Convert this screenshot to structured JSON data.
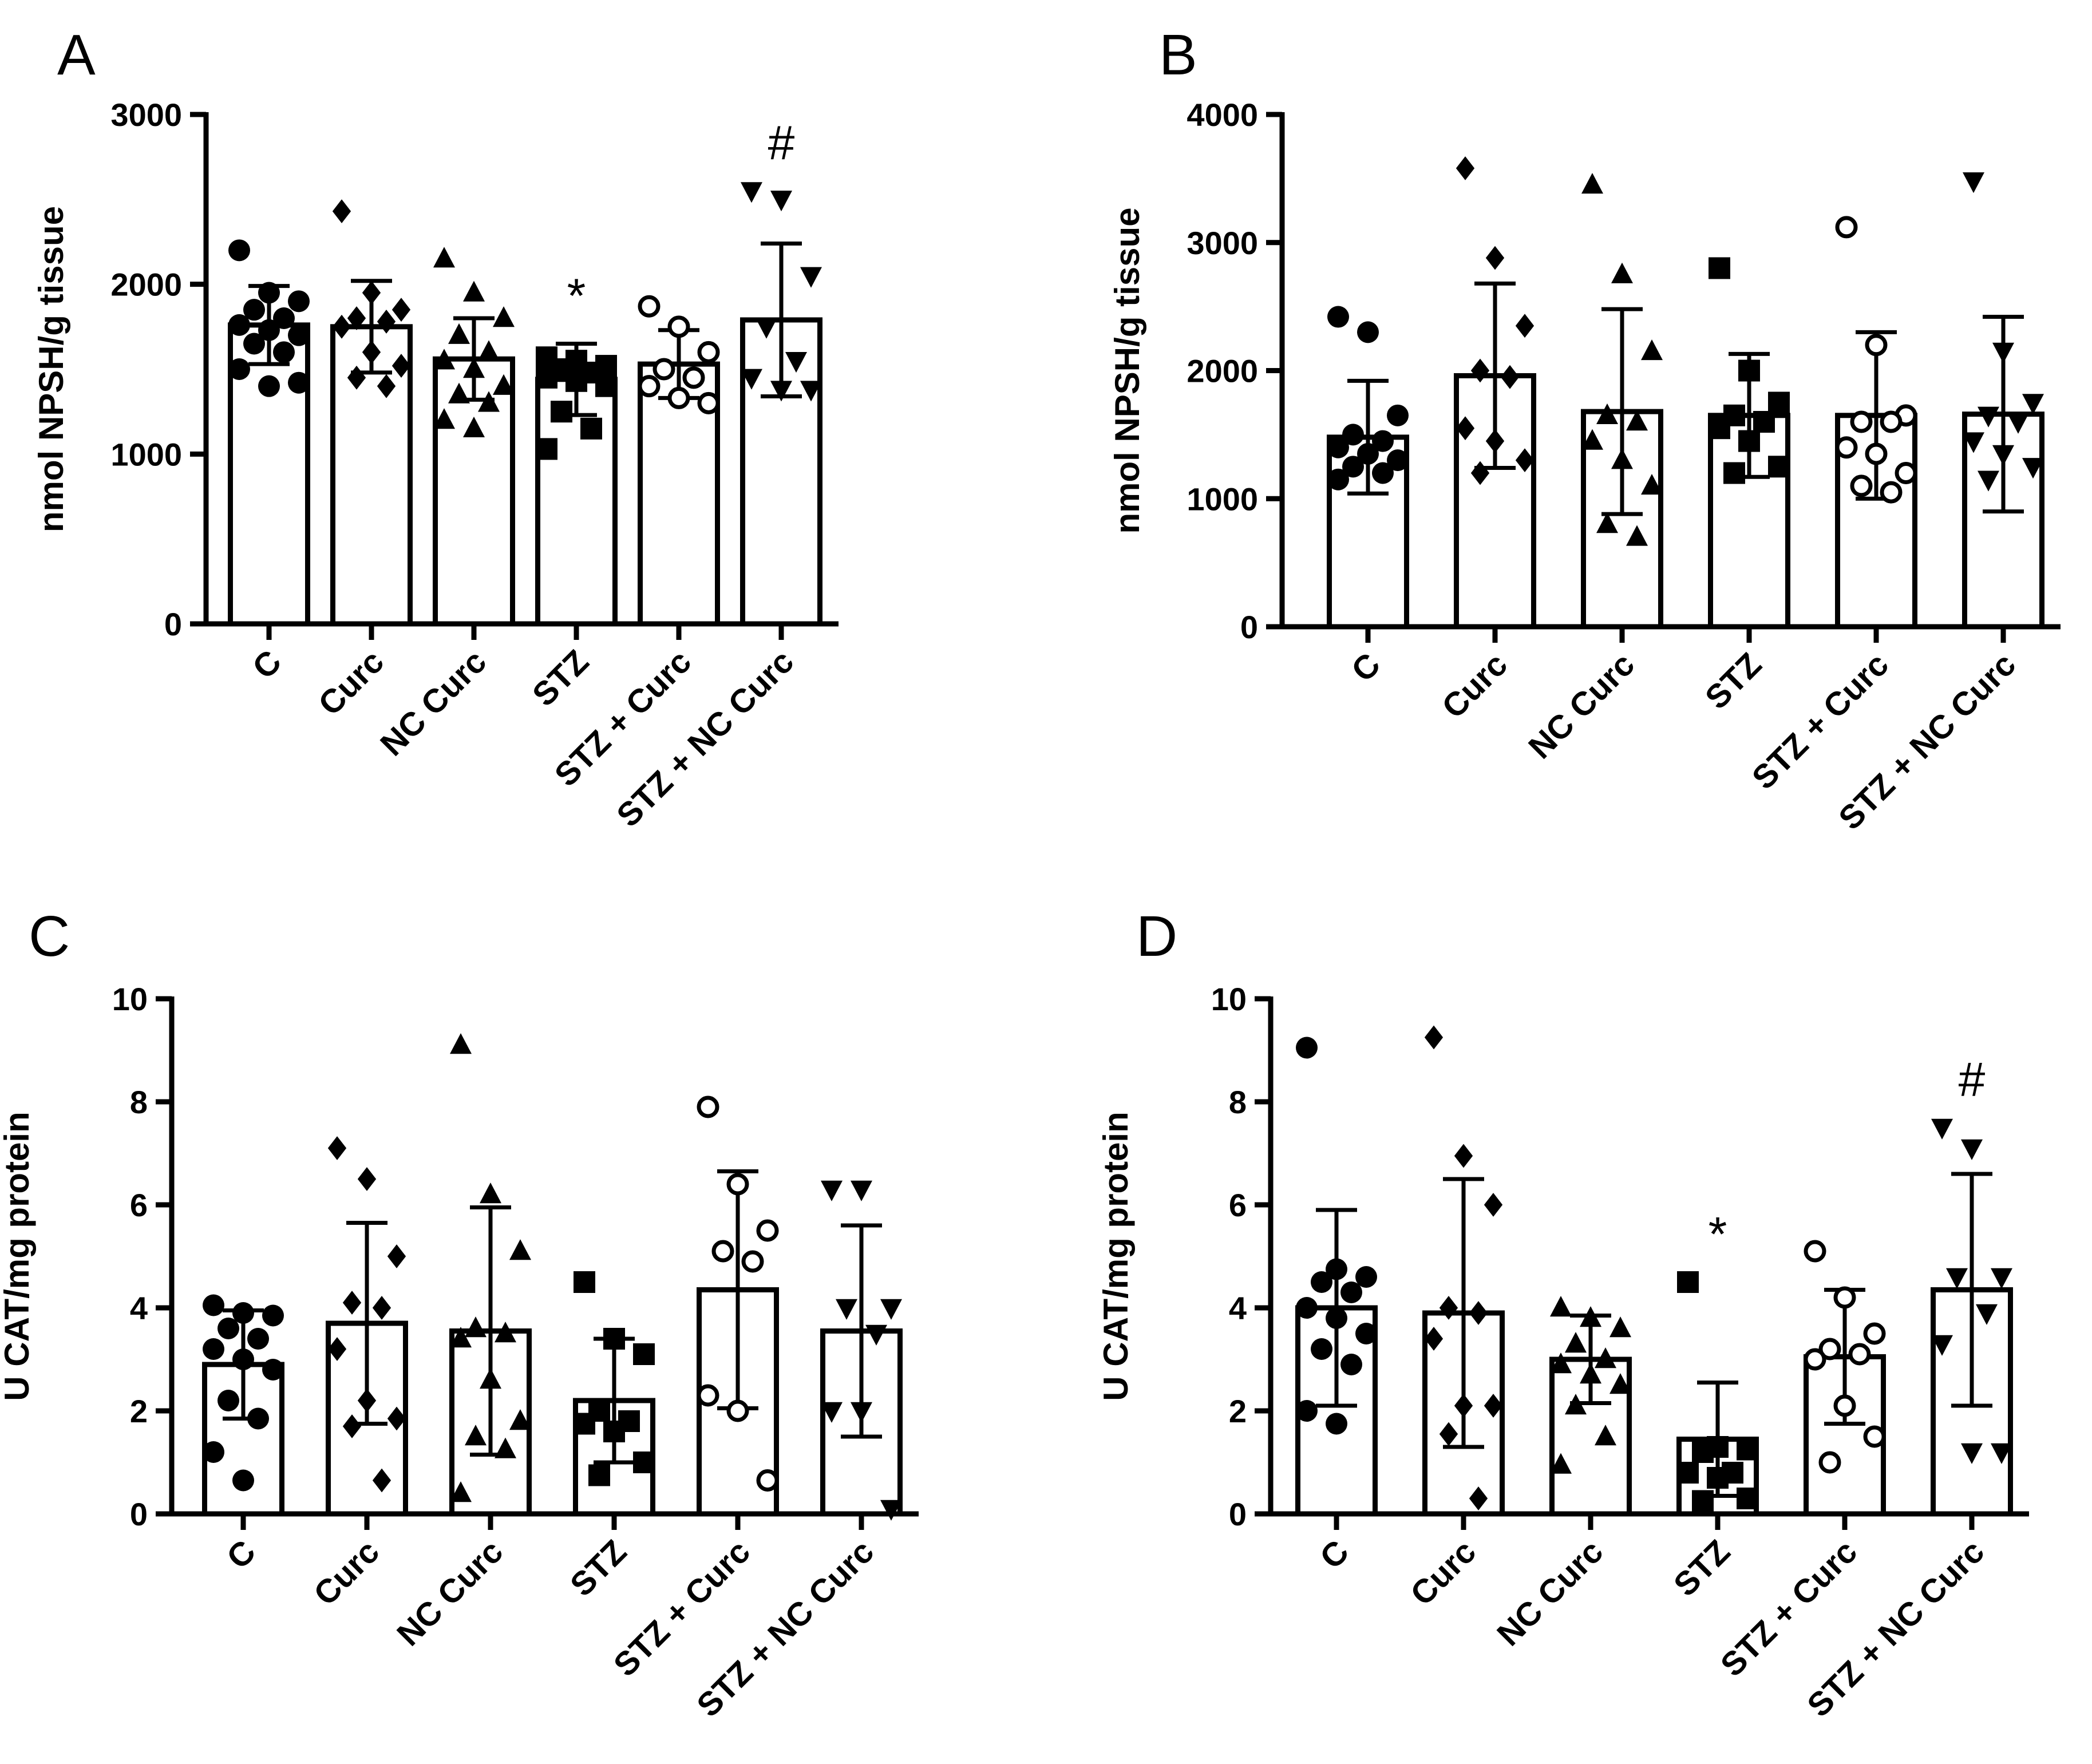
{
  "chart_data": [
    {
      "type": "bar",
      "panel": "A",
      "title": "",
      "ylabel": "nmol NPSH/g tissue",
      "xlabel": "",
      "ylim": [
        0,
        3000
      ],
      "yticks": [
        0,
        1000,
        2000,
        3000
      ],
      "ytick_labels": [
        "0",
        "1000",
        "2000",
        "3000"
      ],
      "categories": [
        "C",
        "Curc",
        "NC Curc",
        "STZ",
        "STZ + Curc",
        "STZ + NC Curc"
      ],
      "markers": [
        "circle",
        "diamond",
        "triangle-up",
        "square",
        "circle-open",
        "triangle-down"
      ],
      "values": [
        1760,
        1750,
        1560,
        1440,
        1530,
        1790
      ],
      "error": [
        230,
        270,
        240,
        210,
        200,
        450
      ],
      "annotations": [
        "",
        "",
        "",
        "*",
        "",
        "#"
      ],
      "points": [
        [
          2200,
          1950,
          1900,
          1850,
          1800,
          1760,
          1730,
          1700,
          1650,
          1600,
          1500,
          1400,
          1420
        ],
        [
          2430,
          1950,
          1850,
          1800,
          1780,
          1750,
          1600,
          1520,
          1450,
          1400
        ],
        [
          2150,
          1950,
          1800,
          1700,
          1600,
          1550,
          1500,
          1400,
          1350,
          1300,
          1200,
          1150
        ],
        [
          1570,
          1550,
          1520,
          1500,
          1480,
          1450,
          1430,
          1400,
          1250,
          1150,
          1030
        ],
        [
          1870,
          1750,
          1600,
          1500,
          1450,
          1400,
          1330,
          1300
        ],
        [
          2550,
          2500,
          2050,
          1750,
          1550,
          1450,
          1380,
          1380
        ]
      ]
    },
    {
      "type": "bar",
      "panel": "B",
      "title": "",
      "ylabel": "nmol NPSH/g tissue",
      "xlabel": "",
      "ylim": [
        0,
        4000
      ],
      "yticks": [
        0,
        1000,
        2000,
        3000,
        4000
      ],
      "ytick_labels": [
        "0",
        "1000",
        "2000",
        "3000",
        "4000"
      ],
      "categories": [
        "C",
        "Curc",
        "NC Curc",
        "STZ",
        "STZ + Curc",
        "STZ + NC Curc"
      ],
      "markers": [
        "circle",
        "diamond",
        "triangle-up",
        "square",
        "circle-open",
        "triangle-down"
      ],
      "values": [
        1480,
        1960,
        1680,
        1650,
        1650,
        1660
      ],
      "error": [
        440,
        720,
        800,
        480,
        650,
        760
      ],
      "annotations": [
        "",
        "",
        "",
        "",
        "",
        ""
      ],
      "points": [
        [
          2420,
          2300,
          1650,
          1500,
          1450,
          1400,
          1350,
          1300,
          1250,
          1200,
          1150
        ],
        [
          3580,
          2880,
          2350,
          2000,
          1950,
          1550,
          1450,
          1300,
          1200
        ],
        [
          3450,
          2750,
          2150,
          1650,
          1600,
          1450,
          1300,
          1100,
          800,
          700
        ],
        [
          2800,
          2000,
          1750,
          1650,
          1600,
          1550,
          1450,
          1250,
          1200
        ],
        [
          3120,
          2200,
          1650,
          1600,
          1600,
          1400,
          1350,
          1200,
          1100,
          1050
        ],
        [
          3480,
          2150,
          1750,
          1650,
          1600,
          1450,
          1350,
          1250,
          1150
        ]
      ]
    },
    {
      "type": "bar",
      "panel": "C",
      "title": "",
      "ylabel": "U CAT/mg protein",
      "xlabel": "",
      "ylim": [
        0,
        10
      ],
      "yticks": [
        0,
        2,
        4,
        6,
        8,
        10
      ],
      "ytick_labels": [
        "0",
        "2",
        "4",
        "6",
        "8",
        "10"
      ],
      "categories": [
        "C",
        "Curc",
        "NC Curc",
        "STZ",
        "STZ + Curc",
        "STZ + NC Curc"
      ],
      "markers": [
        "circle",
        "diamond",
        "triangle-up",
        "square",
        "circle-open",
        "triangle-down"
      ],
      "values": [
        2.9,
        3.7,
        3.55,
        2.2,
        4.35,
        3.55
      ],
      "error": [
        1.05,
        1.95,
        2.4,
        1.2,
        2.3,
        2.05
      ],
      "annotations": [
        "",
        "",
        "",
        "",
        "",
        ""
      ],
      "points": [
        [
          4.05,
          3.9,
          3.85,
          3.6,
          3.4,
          3.2,
          3.0,
          2.8,
          2.2,
          1.85,
          1.2,
          0.65
        ],
        [
          7.1,
          6.5,
          5.0,
          4.1,
          4.0,
          3.2,
          2.2,
          1.85,
          1.7,
          0.65
        ],
        [
          9.1,
          6.2,
          5.1,
          3.6,
          3.5,
          3.4,
          2.6,
          1.8,
          1.5,
          1.25,
          0.4
        ],
        [
          4.5,
          3.4,
          3.1,
          2.0,
          1.8,
          1.75,
          1.6,
          1.0,
          0.75
        ],
        [
          7.9,
          6.4,
          5.5,
          5.1,
          4.9,
          2.3,
          2.0,
          0.65
        ],
        [
          6.3,
          6.3,
          4.0,
          4.0,
          3.5,
          2.0,
          2.0,
          0.1
        ]
      ]
    },
    {
      "type": "bar",
      "panel": "D",
      "title": "",
      "ylabel": "U CAT/mg protein",
      "xlabel": "",
      "ylim": [
        0,
        10
      ],
      "yticks": [
        0,
        2,
        4,
        6,
        8,
        10
      ],
      "ytick_labels": [
        "0",
        "2",
        "4",
        "6",
        "8",
        "10"
      ],
      "categories": [
        "C",
        "Curc",
        "NC Curc",
        "STZ",
        "STZ + Curc",
        "STZ + NC Curc"
      ],
      "markers": [
        "circle",
        "diamond",
        "triangle-up",
        "square",
        "circle-open",
        "triangle-down"
      ],
      "values": [
        4.0,
        3.9,
        3.0,
        1.45,
        3.05,
        4.35
      ],
      "error": [
        1.9,
        2.6,
        0.85,
        1.1,
        1.3,
        2.25
      ],
      "annotations": [
        "",
        "",
        "",
        "*",
        "",
        "#"
      ],
      "points": [
        [
          9.05,
          4.75,
          4.6,
          4.5,
          4.3,
          4.0,
          3.8,
          3.5,
          3.2,
          2.9,
          2.0,
          1.75
        ],
        [
          9.25,
          6.95,
          6.0,
          4.0,
          3.9,
          3.4,
          2.1,
          2.1,
          1.55,
          0.3
        ],
        [
          4.0,
          3.8,
          3.6,
          3.3,
          3.0,
          2.9,
          2.7,
          2.5,
          2.1,
          1.5,
          0.95
        ],
        [
          4.5,
          1.3,
          1.25,
          1.2,
          0.8,
          0.8,
          0.7,
          0.3,
          0.25
        ],
        [
          5.1,
          4.2,
          3.5,
          3.2,
          3.1,
          3.0,
          2.1,
          1.5,
          1.0
        ],
        [
          7.5,
          7.1,
          4.6,
          4.6,
          3.9,
          3.3,
          1.2,
          1.2
        ]
      ]
    }
  ]
}
